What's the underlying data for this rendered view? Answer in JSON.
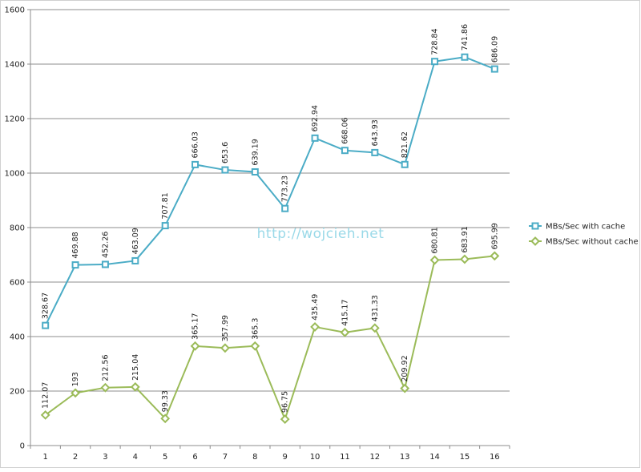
{
  "chart_data": {
    "type": "line",
    "title": "",
    "xlabel": "",
    "ylabel": "",
    "x": [
      "1",
      "2",
      "3",
      "4",
      "5",
      "6",
      "7",
      "8",
      "9",
      "10",
      "11",
      "12",
      "13",
      "14",
      "15",
      "16"
    ],
    "ylim": [
      0,
      1600
    ],
    "yticks": [
      0,
      200,
      400,
      600,
      800,
      1000,
      1200,
      1400,
      1600
    ],
    "grid": "horizontal",
    "legend": "right",
    "series": [
      {
        "name": "MBs/Sec with cache",
        "color": "#4bacc6",
        "marker": "square",
        "values": [
          440.74,
          662.88,
          664.82,
          678.13,
          807.14,
          1031.2,
          1011.59,
          1004.49,
          869.98,
          1128.43,
          1083.23,
          1075.26,
          1031.54,
          1409.65,
          1425.77,
          1382.08
        ],
        "labels": [
          "328.67",
          "469.88",
          "452.26",
          "463.09",
          "707.81",
          "666.03",
          "653.6",
          "639.19",
          "773.23",
          "692.94",
          "668.06",
          "643.93",
          "821.62",
          "728.84",
          "741.86",
          "686.09"
        ]
      },
      {
        "name": "MBs/Sec without cache",
        "color": "#9bbb59",
        "marker": "diamond",
        "values": [
          112.07,
          193,
          212.56,
          215.04,
          99.33,
          365.17,
          357.99,
          365.3,
          96.75,
          435.49,
          415.17,
          431.33,
          209.92,
          680.81,
          683.91,
          695.99
        ],
        "labels": [
          "112.07",
          "193",
          "212.56",
          "215.04",
          "99.33",
          "365.17",
          "357.99",
          "365.3",
          "96.75",
          "435.49",
          "415.17",
          "431.33",
          "209.92",
          "680.81",
          "683.91",
          "695.99"
        ]
      }
    ],
    "watermark": "http://wojcieh.net"
  }
}
